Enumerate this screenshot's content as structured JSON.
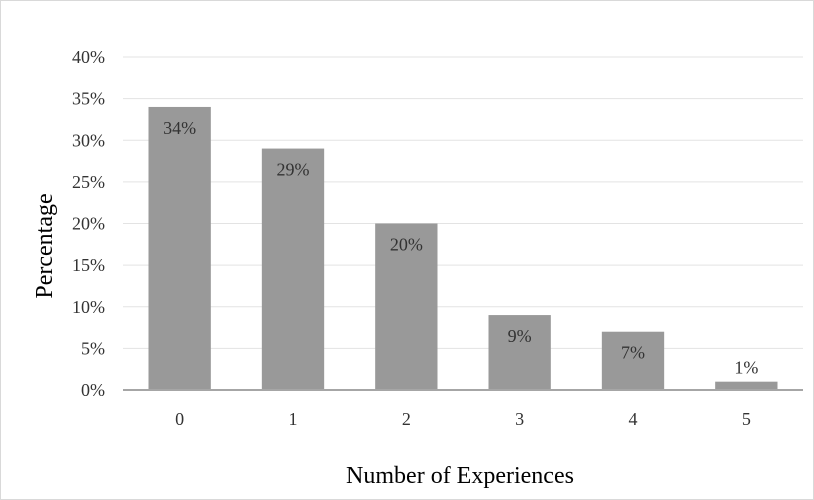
{
  "chart_data": {
    "type": "bar",
    "categories": [
      "0",
      "1",
      "2",
      "3",
      "4",
      "5"
    ],
    "values": [
      34,
      29,
      20,
      9,
      7,
      1
    ],
    "data_labels": [
      "34%",
      "29%",
      "20%",
      "9%",
      "7%",
      "1%"
    ],
    "title": "",
    "xlabel": "Number of Experiences",
    "ylabel": "Percentage",
    "ylim": [
      0,
      40
    ],
    "y_ticks": [
      0,
      5,
      10,
      15,
      20,
      25,
      30,
      35,
      40
    ],
    "y_tick_labels": [
      "0%",
      "5%",
      "10%",
      "15%",
      "20%",
      "25%",
      "30%",
      "35%",
      "40%"
    ],
    "grid": true,
    "legend": "none",
    "bar_color": "#999999",
    "grid_color": "#e3e3e3",
    "axis_color": "#a6a6a6"
  }
}
